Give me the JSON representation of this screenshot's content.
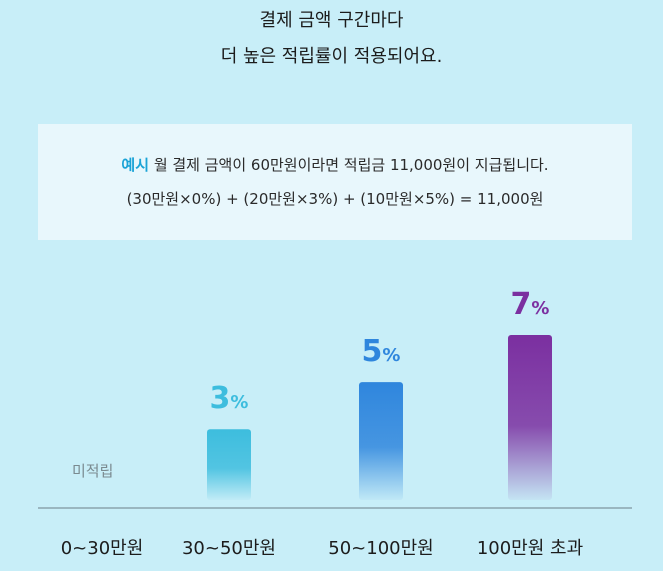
{
  "headline": {
    "line1": "결제 금액 구간마다",
    "line2": "더 높은 적립률이 적용되어요."
  },
  "example": {
    "tag": "예시",
    "line1": "월 결제 금액이 60만원이라면 적립금 11,000원이 지급됩니다.",
    "line2": "(30만원×0%) + (20만원×3%) + (10만원×5%) = 11,000원"
  },
  "chart_data": {
    "type": "bar",
    "categories": [
      "0~30만원",
      "30~50만원",
      "50~100만원",
      "100만원 초과"
    ],
    "values": [
      0,
      3,
      5,
      7
    ],
    "value_labels": [
      "미적립",
      "3",
      "5",
      "7"
    ],
    "unit": "%",
    "ylim": [
      0,
      7
    ],
    "colors": [
      "",
      "#3dbdde",
      "#2f86dd",
      "#7b2fa0"
    ]
  }
}
